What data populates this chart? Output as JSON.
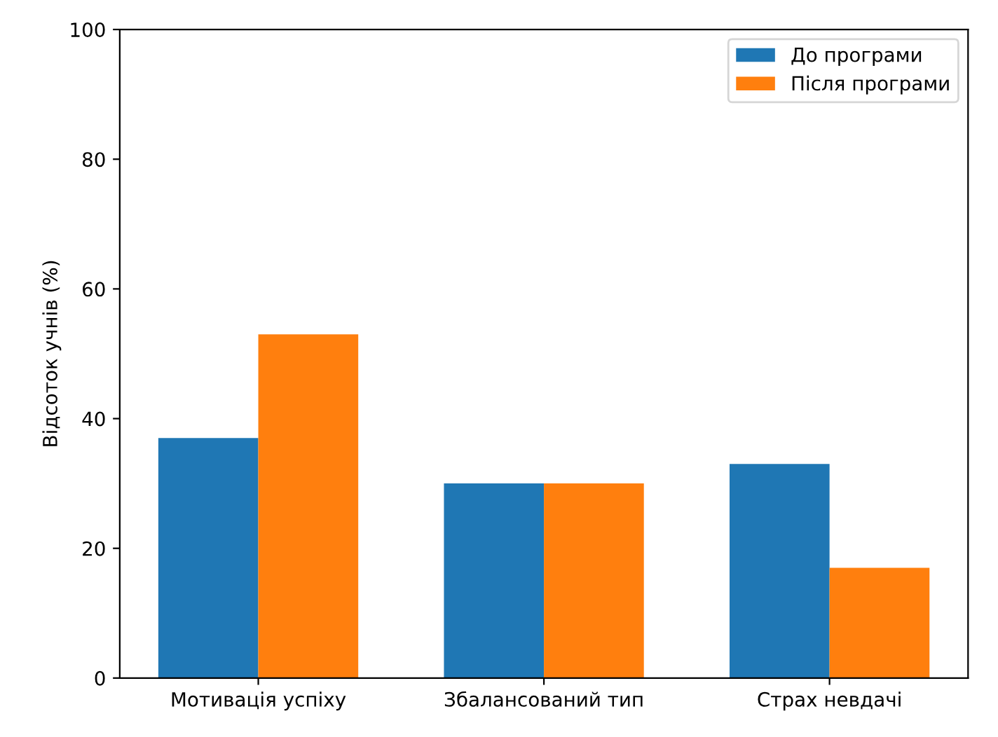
{
  "chart_data": {
    "type": "bar",
    "ylabel": "Відсоток учнів (%)",
    "categories": [
      "Мотивація успіху",
      "Збалансований тип",
      "Страх невдачі"
    ],
    "series": [
      {
        "name": "До програми",
        "color": "#1f77b4",
        "values": [
          37,
          30,
          33
        ]
      },
      {
        "name": "Після програми",
        "color": "#ff7f0e",
        "values": [
          53,
          30,
          17
        ]
      }
    ],
    "ylim": [
      0,
      100
    ],
    "yticks": [
      0,
      20,
      40,
      60,
      80,
      100
    ],
    "legend": "top right",
    "grid": false
  }
}
